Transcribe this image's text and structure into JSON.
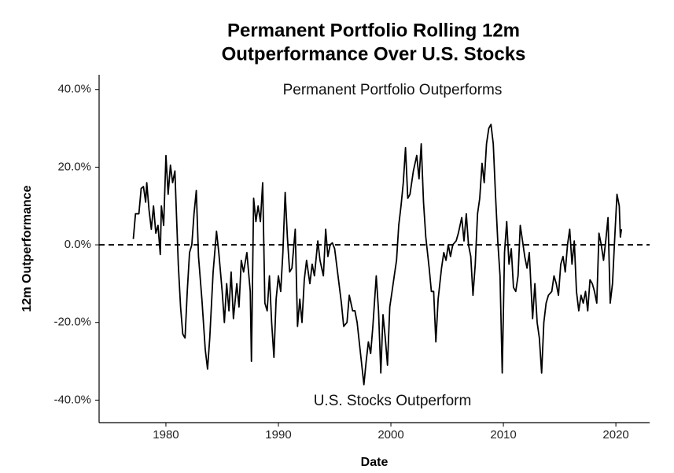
{
  "chart_data": {
    "type": "line",
    "title": [
      "Permanent Portfolio Rolling 12m",
      "Outperformance Over U.S. Stocks"
    ],
    "x_label": "Date",
    "y_label": "12m Outperformance",
    "annotations": [
      "Permanent Portfolio Outperforms",
      "U.S. Stocks Outperform"
    ],
    "color": "#000000",
    "reference_line": 0,
    "xlim": [
      1974.06,
      2023.0
    ],
    "xticks": [
      1980,
      1990,
      2000,
      2010,
      2020
    ],
    "ylim": [
      -45.8,
      43.8
    ],
    "yticks": [
      {
        "value": -40,
        "label": "-40.0%"
      },
      {
        "value": -20,
        "label": "-20.0%"
      },
      {
        "value": 0,
        "label": "0.0%"
      },
      {
        "value": 20,
        "label": "20.0%"
      },
      {
        "value": 40,
        "label": "40.0%"
      }
    ],
    "x": [
      1977.1,
      1977.3,
      1977.6,
      1977.8,
      1978.0,
      1978.2,
      1978.3,
      1978.5,
      1978.7,
      1978.9,
      1979.1,
      1979.3,
      1979.5,
      1979.6,
      1979.8,
      1980.0,
      1980.2,
      1980.4,
      1980.6,
      1980.8,
      1980.9,
      1981.1,
      1981.3,
      1981.5,
      1981.7,
      1981.9,
      1982.1,
      1982.3,
      1982.5,
      1982.7,
      1982.9,
      1983.2,
      1983.5,
      1983.7,
      1983.9,
      1984.2,
      1984.5,
      1984.7,
      1985.0,
      1985.2,
      1985.4,
      1985.6,
      1985.8,
      1986.0,
      1986.3,
      1986.5,
      1986.7,
      1986.9,
      1987.2,
      1987.5,
      1987.6,
      1987.8,
      1988.0,
      1988.2,
      1988.4,
      1988.6,
      1988.8,
      1989.0,
      1989.2,
      1989.4,
      1989.6,
      1989.8,
      1990.0,
      1990.2,
      1990.4,
      1990.6,
      1990.8,
      1991.0,
      1991.2,
      1991.5,
      1991.7,
      1991.9,
      1992.1,
      1992.3,
      1992.5,
      1992.8,
      1993.0,
      1993.2,
      1993.5,
      1993.7,
      1994.0,
      1994.2,
      1994.4,
      1994.6,
      1994.8,
      1995.0,
      1995.3,
      1995.6,
      1995.8,
      1996.1,
      1996.3,
      1996.6,
      1996.8,
      1997.0,
      1997.3,
      1997.6,
      1997.8,
      1998.0,
      1998.2,
      1998.4,
      1998.7,
      1998.9,
      1999.1,
      1999.3,
      1999.5,
      1999.7,
      1999.9,
      2000.1,
      2000.3,
      2000.5,
      2000.7,
      2000.9,
      2001.1,
      2001.3,
      2001.5,
      2001.7,
      2002.0,
      2002.3,
      2002.5,
      2002.7,
      2002.9,
      2003.1,
      2003.4,
      2003.6,
      2003.8,
      2004.0,
      2004.2,
      2004.5,
      2004.7,
      2004.9,
      2005.1,
      2005.3,
      2005.5,
      2005.8,
      2006.0,
      2006.3,
      2006.5,
      2006.7,
      2006.9,
      2007.1,
      2007.3,
      2007.5,
      2007.7,
      2007.9,
      2008.1,
      2008.3,
      2008.5,
      2008.7,
      2008.9,
      2009.1,
      2009.3,
      2009.5,
      2009.7,
      2009.9,
      2010.1,
      2010.3,
      2010.5,
      2010.7,
      2010.9,
      2011.1,
      2011.3,
      2011.5,
      2011.7,
      2011.9,
      2012.1,
      2012.3,
      2012.6,
      2012.8,
      2013.0,
      2013.2,
      2013.4,
      2013.6,
      2013.8,
      2014.0,
      2014.3,
      2014.5,
      2014.7,
      2014.9,
      2015.1,
      2015.3,
      2015.5,
      2015.7,
      2015.9,
      2016.1,
      2016.3,
      2016.5,
      2016.7,
      2016.9,
      2017.1,
      2017.3,
      2017.5,
      2017.7,
      2017.9,
      2018.1,
      2018.3,
      2018.5,
      2018.7,
      2018.9,
      2019.1,
      2019.3,
      2019.5,
      2019.7,
      2019.9,
      2020.1,
      2020.3,
      2020.4,
      2020.5
    ],
    "values": [
      1.5,
      8,
      8,
      14.5,
      15,
      11,
      16,
      9,
      4,
      10,
      3,
      5,
      -2.5,
      10,
      5,
      23,
      13,
      20.5,
      16,
      19,
      11,
      -5,
      -16,
      -23,
      -24,
      -12,
      -2,
      0,
      8,
      14,
      -3,
      -14,
      -27,
      -32,
      -24,
      -7,
      3.5,
      -2,
      -12,
      -20,
      -10,
      -17,
      -7,
      -19,
      -10,
      -16,
      -4,
      -7,
      -2,
      -12,
      -30,
      12,
      6,
      10,
      6,
      16,
      -15,
      -17,
      -8,
      -20,
      -29,
      -14,
      -8,
      -12,
      -2,
      13.5,
      2,
      -7,
      -6,
      4,
      -21,
      -14,
      -20,
      -9,
      -4,
      -10,
      -5,
      -8,
      1,
      -4,
      -8,
      4,
      -3,
      0,
      0.5,
      -1,
      -8,
      -15,
      -21,
      -20,
      -13,
      -17,
      -17,
      -20,
      -28,
      -36,
      -30,
      -25,
      -28,
      -21,
      -8,
      -17,
      -33,
      -18,
      -24,
      -31,
      -16,
      -12,
      -8,
      -4,
      5,
      10,
      16,
      25,
      12,
      13,
      19,
      23,
      17,
      26,
      11,
      2,
      -6,
      -12,
      -12,
      -25,
      -14,
      -6,
      -2,
      -4,
      0,
      -3,
      0,
      1,
      3,
      7,
      1,
      8,
      0,
      -3,
      -13,
      -5,
      8,
      12,
      21,
      16,
      26,
      30,
      31,
      26,
      13,
      1,
      -8,
      -33,
      -2,
      6,
      -5,
      -1,
      -11,
      -12,
      -8,
      5,
      1,
      -3,
      -6,
      -2,
      -19,
      -10,
      -20,
      -24,
      -33,
      -20,
      -15,
      -13,
      -12,
      -8,
      -10,
      -13,
      -5,
      -3,
      -7,
      0,
      4,
      -5,
      1,
      -12,
      -17,
      -13,
      -15,
      -12,
      -17,
      -9,
      -10,
      -12,
      -15,
      3,
      0,
      -4,
      1,
      7,
      -15,
      -10,
      2,
      13,
      10,
      2,
      4
    ]
  }
}
